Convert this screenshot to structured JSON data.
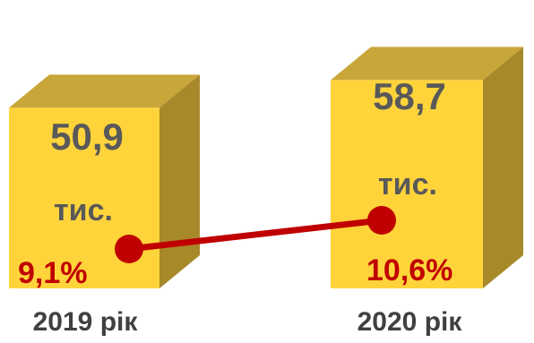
{
  "chart_data": {
    "type": "bar",
    "categories": [
      "2019 рік",
      "2020 рік"
    ],
    "series": [
      {
        "values": [
          50.9,
          58.7
        ],
        "labels": [
          "50,9",
          "58,7"
        ],
        "unit": "тис."
      },
      {
        "values": [
          9.1,
          10.6
        ],
        "labels": [
          "9,1%",
          "10,6%"
        ],
        "style": "line"
      }
    ]
  },
  "colors": {
    "bar_front": "#ffd43b",
    "bar_top": "#c9a63a",
    "bar_side": "#a8892a",
    "line": "#c00000",
    "value_text": "#595959",
    "percent_text": "#c00000"
  }
}
